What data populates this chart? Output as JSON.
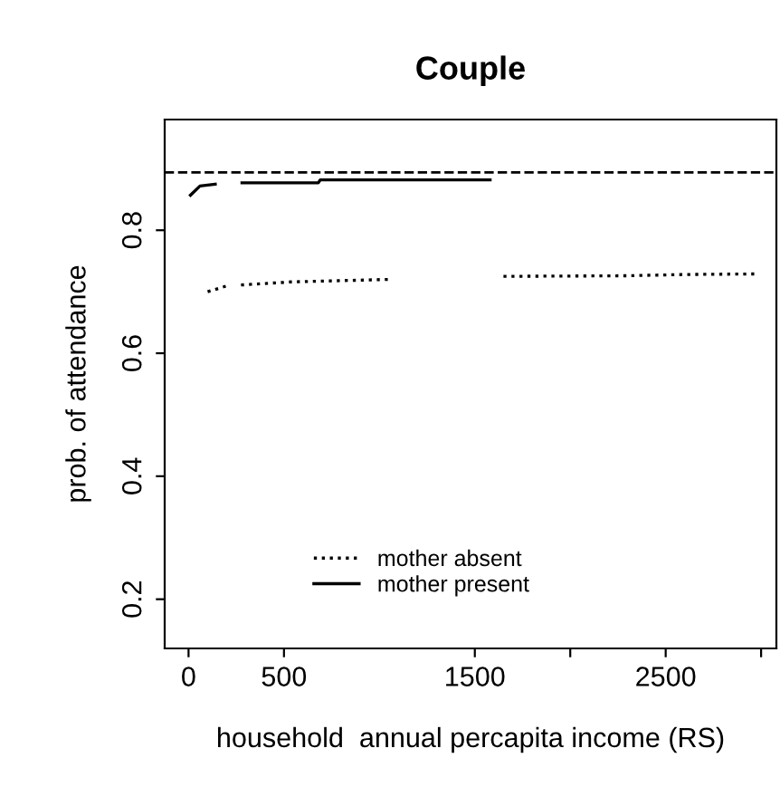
{
  "chart_data": {
    "type": "line",
    "title": "Couple",
    "xlabel": "household  annual percapita income (RS)",
    "ylabel": "prob. of attendance",
    "xlim": [
      -125,
      3080
    ],
    "xticks": [
      0,
      500,
      1500,
      {
        "value": 2000,
        "label": null
      },
      2500,
      {
        "value": 3000,
        "label": null
      }
    ],
    "ylim": [
      0.12,
      0.98
    ],
    "yticks": [
      0.2,
      0.4,
      0.6,
      0.8
    ],
    "series": [
      {
        "name": "mother absent",
        "color": "#000000",
        "line_style": "dotted",
        "x": [
          100,
          195,
          235,
          275,
          540,
          1045,
          1350,
          1650,
          2300,
          2600,
          2980
        ],
        "values": [
          0.7,
          0.709,
          null,
          0.711,
          0.716,
          0.72,
          null,
          0.725,
          0.726,
          0.728,
          0.729
        ]
      },
      {
        "name": "mother present",
        "color": "#000000",
        "line_style": "solid",
        "x": [
          10,
          60,
          140,
          210,
          280,
          680,
          690,
          1580
        ],
        "values": [
          0.857,
          0.872,
          0.875,
          null,
          0.877,
          0.877,
          0.882,
          0.882
        ]
      }
    ],
    "ref_lines": [
      {
        "axis": "y",
        "value": 0.894,
        "color": "#000000",
        "line_style": "dashed"
      }
    ],
    "legend": "bottom",
    "grid": false
  }
}
